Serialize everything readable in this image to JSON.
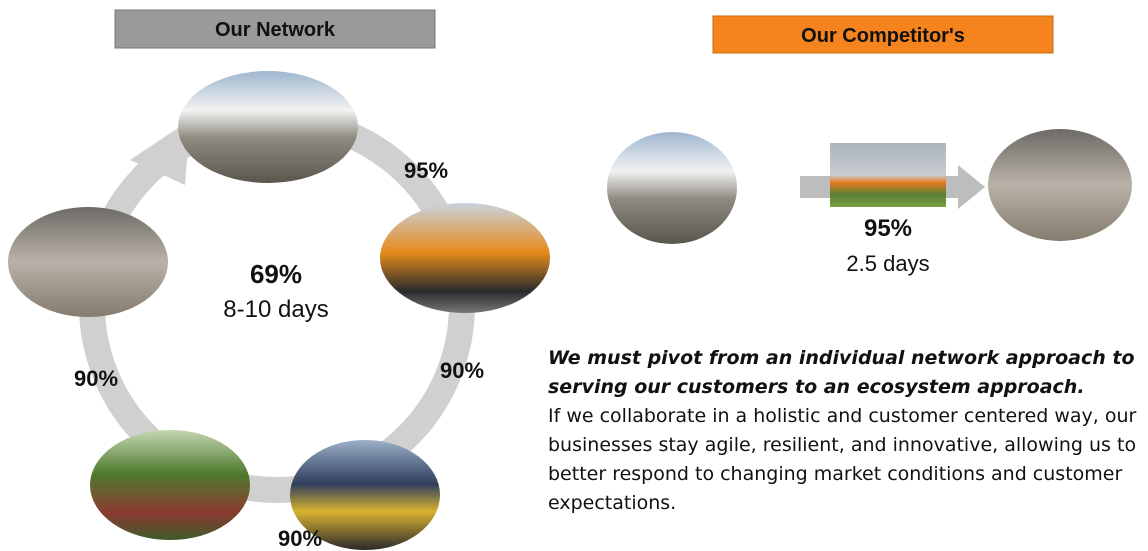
{
  "network": {
    "title": "Our Network",
    "center_value": "69%",
    "center_duration": "8-10 days",
    "links": [
      "95%",
      "90%",
      "90%",
      "90%"
    ]
  },
  "competitor": {
    "title": "Our Competitor's",
    "value": "95%",
    "duration": "2.5 days"
  },
  "message": {
    "headline": "We must pivot from an individual network approach to serving our customers to an ecosystem approach.",
    "body": "If we collaborate in a holistic and customer centered way, our businesses stay agile, resilient, and innovative, allowing us to better respond to changing market conditions and customer expectations."
  }
}
